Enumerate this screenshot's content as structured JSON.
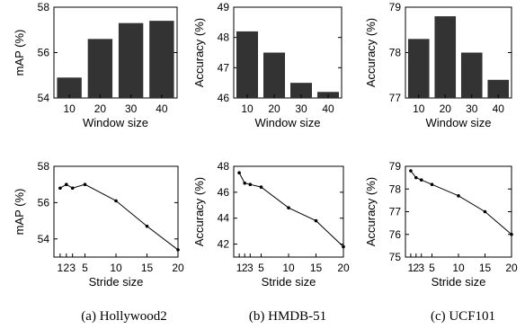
{
  "colors": {
    "bar": "#333333",
    "axis": "#000000",
    "line": "#000000"
  },
  "chart_data": [
    {
      "type": "bar",
      "xlabel": "Window size",
      "ylabel": "mAP (%)",
      "categories": [
        "10",
        "20",
        "30",
        "40"
      ],
      "values": [
        54.9,
        56.6,
        57.3,
        57.4
      ],
      "ylim": [
        54,
        58
      ],
      "yticks": [
        "54",
        "56",
        "58"
      ],
      "grid": false
    },
    {
      "type": "bar",
      "xlabel": "Window size",
      "ylabel": "Accuracy (%)",
      "categories": [
        "10",
        "20",
        "30",
        "40"
      ],
      "values": [
        48.2,
        47.5,
        46.5,
        46.2
      ],
      "ylim": [
        46,
        49
      ],
      "yticks": [
        "46",
        "47",
        "48",
        "49"
      ],
      "grid": false
    },
    {
      "type": "bar",
      "xlabel": "Window size",
      "ylabel": "Accuracy (%)",
      "categories": [
        "10",
        "20",
        "30",
        "40"
      ],
      "values": [
        78.3,
        78.8,
        78.0,
        77.4
      ],
      "ylim": [
        77,
        79
      ],
      "yticks": [
        "77",
        "78",
        "79"
      ],
      "grid": false
    },
    {
      "type": "line",
      "xlabel": "Stride size",
      "ylabel": "mAP (%)",
      "x": [
        1,
        2,
        3,
        5,
        10,
        15,
        20
      ],
      "y": [
        56.8,
        57.0,
        56.8,
        57.0,
        56.1,
        54.7,
        53.4
      ],
      "xlim": [
        0,
        20
      ],
      "xticks": [
        "1",
        "2",
        "3",
        "5",
        "10",
        "15",
        "20"
      ],
      "ylim": [
        53,
        58
      ],
      "yticks": [
        "54",
        "56",
        "58"
      ],
      "grid": false
    },
    {
      "type": "line",
      "xlabel": "Stride size",
      "ylabel": "Accuracy (%)",
      "x": [
        1,
        2,
        3,
        5,
        10,
        15,
        20
      ],
      "y": [
        47.5,
        46.7,
        46.6,
        46.4,
        44.8,
        43.8,
        41.8
      ],
      "xlim": [
        0,
        20
      ],
      "xticks": [
        "1",
        "2",
        "3",
        "5",
        "10",
        "15",
        "20"
      ],
      "ylim": [
        41,
        48
      ],
      "yticks": [
        "42",
        "44",
        "46",
        "48"
      ],
      "grid": false
    },
    {
      "type": "line",
      "xlabel": "Stride size",
      "ylabel": "Accuracy (%)",
      "x": [
        1,
        2,
        3,
        5,
        10,
        15,
        20
      ],
      "y": [
        78.8,
        78.5,
        78.4,
        78.2,
        77.7,
        77.0,
        76.0
      ],
      "xlim": [
        0,
        20
      ],
      "xticks": [
        "1",
        "2",
        "3",
        "5",
        "10",
        "15",
        "20"
      ],
      "ylim": [
        75,
        79
      ],
      "yticks": [
        "75",
        "76",
        "77",
        "78",
        "79"
      ],
      "grid": false
    }
  ],
  "captions": [
    "(a) Hollywood2",
    "(b) HMDB-51",
    "(c) UCF101"
  ]
}
